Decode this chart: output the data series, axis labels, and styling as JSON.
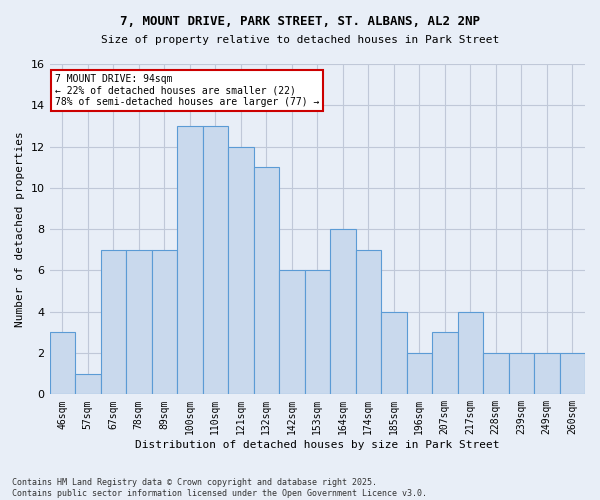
{
  "title_line1": "7, MOUNT DRIVE, PARK STREET, ST. ALBANS, AL2 2NP",
  "title_line2": "Size of property relative to detached houses in Park Street",
  "xlabel": "Distribution of detached houses by size in Park Street",
  "ylabel": "Number of detached properties",
  "bar_labels": [
    "46sqm",
    "57sqm",
    "67sqm",
    "78sqm",
    "89sqm",
    "100sqm",
    "110sqm",
    "121sqm",
    "132sqm",
    "142sqm",
    "153sqm",
    "164sqm",
    "174sqm",
    "185sqm",
    "196sqm",
    "207sqm",
    "217sqm",
    "228sqm",
    "239sqm",
    "249sqm",
    "260sqm"
  ],
  "bar_values": [
    3,
    1,
    7,
    7,
    7,
    13,
    13,
    12,
    11,
    6,
    6,
    8,
    7,
    4,
    2,
    3,
    4,
    2,
    2,
    2,
    2
  ],
  "bar_color": "#c9d9ed",
  "bar_edge_color": "#5b9bd5",
  "annotation_text": "7 MOUNT DRIVE: 94sqm\n← 22% of detached houses are smaller (22)\n78% of semi-detached houses are larger (77) →",
  "annotation_box_color": "white",
  "annotation_box_edge": "#cc0000",
  "ylim": [
    0,
    16
  ],
  "yticks": [
    0,
    2,
    4,
    6,
    8,
    10,
    12,
    14,
    16
  ],
  "grid_color": "#c0c8d8",
  "background_color": "#e8eef7",
  "footer": "Contains HM Land Registry data © Crown copyright and database right 2025.\nContains public sector information licensed under the Open Government Licence v3.0."
}
